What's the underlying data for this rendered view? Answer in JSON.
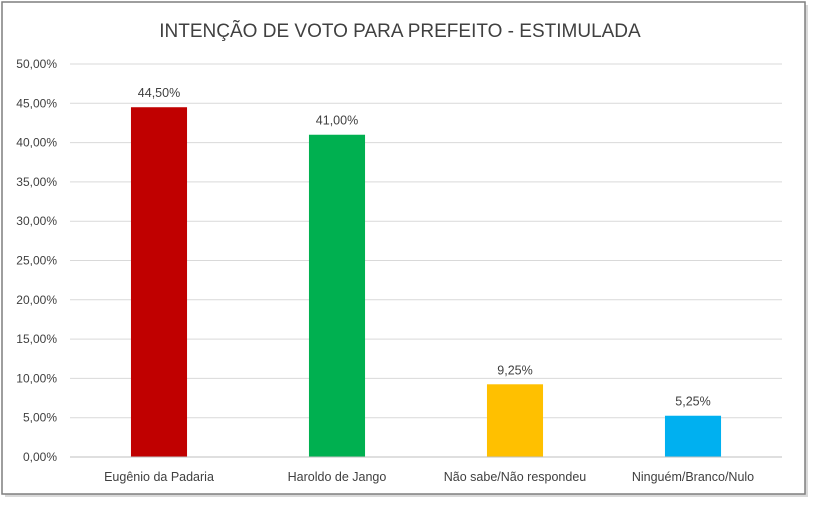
{
  "chart_data": {
    "type": "bar",
    "title": "INTENÇÃO DE VOTO PARA PREFEITO - ESTIMULADA",
    "categories": [
      "Eugênio da Padaria",
      "Haroldo de Jango",
      "Não sabe/Não respondeu",
      "Ninguém/Branco/Nulo"
    ],
    "values": [
      44.5,
      41.0,
      9.25,
      5.25
    ],
    "data_labels": [
      "44,50%",
      "41,00%",
      "9,25%",
      "5,25%"
    ],
    "colors": [
      "#C00000",
      "#00B050",
      "#FFC000",
      "#00B0F0"
    ],
    "ylim": [
      0,
      50
    ],
    "yticks": [
      {
        "value": 0,
        "label": "0,00%"
      },
      {
        "value": 5,
        "label": "5,00%"
      },
      {
        "value": 10,
        "label": "10,00%"
      },
      {
        "value": 15,
        "label": "15,00%"
      },
      {
        "value": 20,
        "label": "20,00%"
      },
      {
        "value": 25,
        "label": "25,00%"
      },
      {
        "value": 30,
        "label": "30,00%"
      },
      {
        "value": 35,
        "label": "35,00%"
      },
      {
        "value": 40,
        "label": "40,00%"
      },
      {
        "value": 45,
        "label": "45,00%"
      },
      {
        "value": 50,
        "label": "50,00%"
      }
    ],
    "grid": true,
    "legend": "none"
  }
}
